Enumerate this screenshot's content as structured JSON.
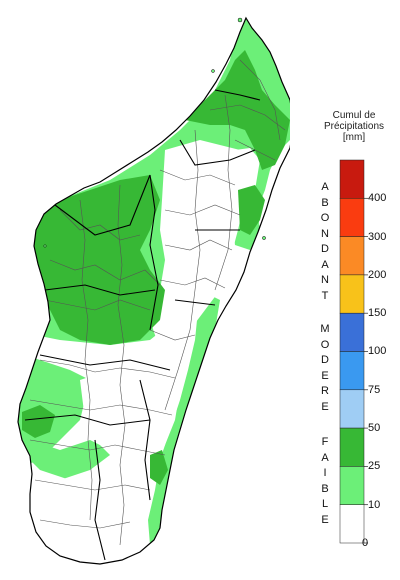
{
  "legend": {
    "title_lines": [
      "Cumul de",
      "Précipitations",
      "[mm]"
    ],
    "categories": [
      {
        "word": "ABONDANT"
      },
      {
        "word": "MODERE"
      },
      {
        "word": "FAIBLE"
      }
    ],
    "ticks": [
      "400",
      "300",
      "200",
      "150",
      "100",
      "75",
      "50",
      "25",
      "10",
      "0"
    ],
    "colors": {
      "above_400": "#c81a0f",
      "300_400": "#fa3c10",
      "200_300": "#fb8a25",
      "150_200": "#f8c21a",
      "100_150": "#3a70d8",
      "75_100": "#3a99f0",
      "50_75": "#9fcdf4",
      "25_50": "#37b835",
      "10_25": "#6cef78",
      "0_10": "#ffffff"
    }
  },
  "map": {
    "region": "Madagascar",
    "land_fill": "#ffffff",
    "district_border": "#555555",
    "region_border": "#000000",
    "zone_colors": {
      "light_green": "#6cef78",
      "green": "#37b835"
    }
  }
}
